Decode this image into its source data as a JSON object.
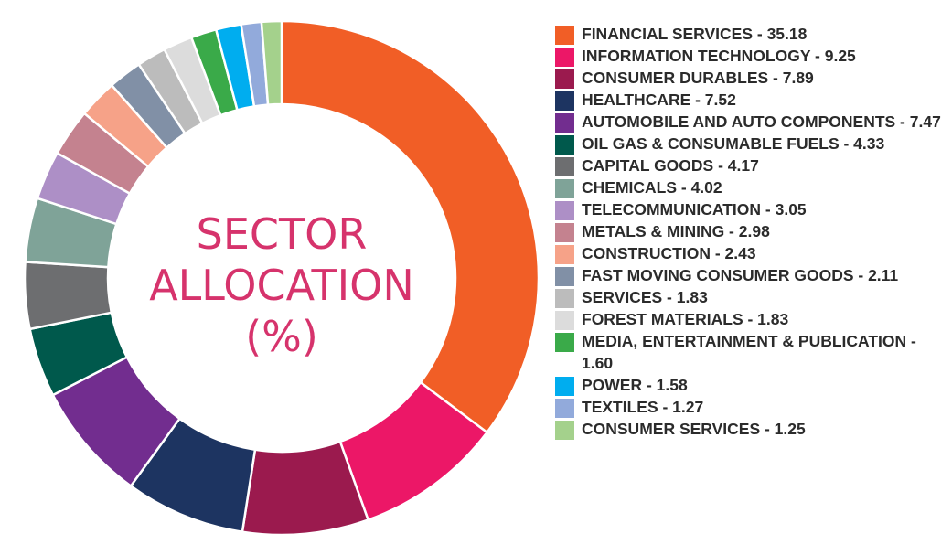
{
  "chart_data": {
    "type": "pie",
    "title_lines": [
      "SECTOR",
      "ALLOCATION",
      "(%)"
    ],
    "title_color": "#d6336c",
    "slices": [
      {
        "label": "FINANCIAL SERVICES - 35.18",
        "value": 35.18,
        "color": "#f15e26"
      },
      {
        "label": "INFORMATION TECHNOLOGY - 9.25",
        "value": 9.25,
        "color": "#ec1767"
      },
      {
        "label": "CONSUMER DURABLES - 7.89",
        "value": 7.89,
        "color": "#9b1a4e"
      },
      {
        "label": "HEALTHCARE - 7.52",
        "value": 7.52,
        "color": "#1d3461"
      },
      {
        "label": "AUTOMOBILE AND AUTO COMPONENTS - 7.47",
        "value": 7.47,
        "color": "#722d8f"
      },
      {
        "label": "OIL GAS & CONSUMABLE FUELS - 4.33",
        "value": 4.33,
        "color": "#00594c"
      },
      {
        "label": "CAPITAL GOODS - 4.17",
        "value": 4.17,
        "color": "#6d6e70"
      },
      {
        "label": "CHEMICALS - 4.02",
        "value": 4.02,
        "color": "#7fa398"
      },
      {
        "label": "TELECOMMUNICATION - 3.05",
        "value": 3.05,
        "color": "#ad8fc6"
      },
      {
        "label": "METALS & MINING - 2.98",
        "value": 2.98,
        "color": "#c4828f"
      },
      {
        "label": "CONSTRUCTION - 2.43",
        "value": 2.43,
        "color": "#f6a288"
      },
      {
        "label": "FAST MOVING CONSUMER GOODS - 2.11",
        "value": 2.11,
        "color": "#8190a6"
      },
      {
        "label": "SERVICES - 1.83",
        "value": 1.83,
        "color": "#bcbcbc"
      },
      {
        "label": "FOREST MATERIALS - 1.83",
        "value": 1.83,
        "color": "#dcdcdc"
      },
      {
        "label": "MEDIA, ENTERTAINMENT & PUBLICATION - 1.60",
        "value": 1.6,
        "color": "#3aaa49"
      },
      {
        "label": "POWER - 1.58",
        "value": 1.58,
        "color": "#00adef"
      },
      {
        "label": "TEXTILES - 1.27",
        "value": 1.27,
        "color": "#92aadb"
      },
      {
        "label": "CONSUMER SERVICES - 1.25",
        "value": 1.25,
        "color": "#a4d18c"
      }
    ],
    "legend_position": "right"
  }
}
